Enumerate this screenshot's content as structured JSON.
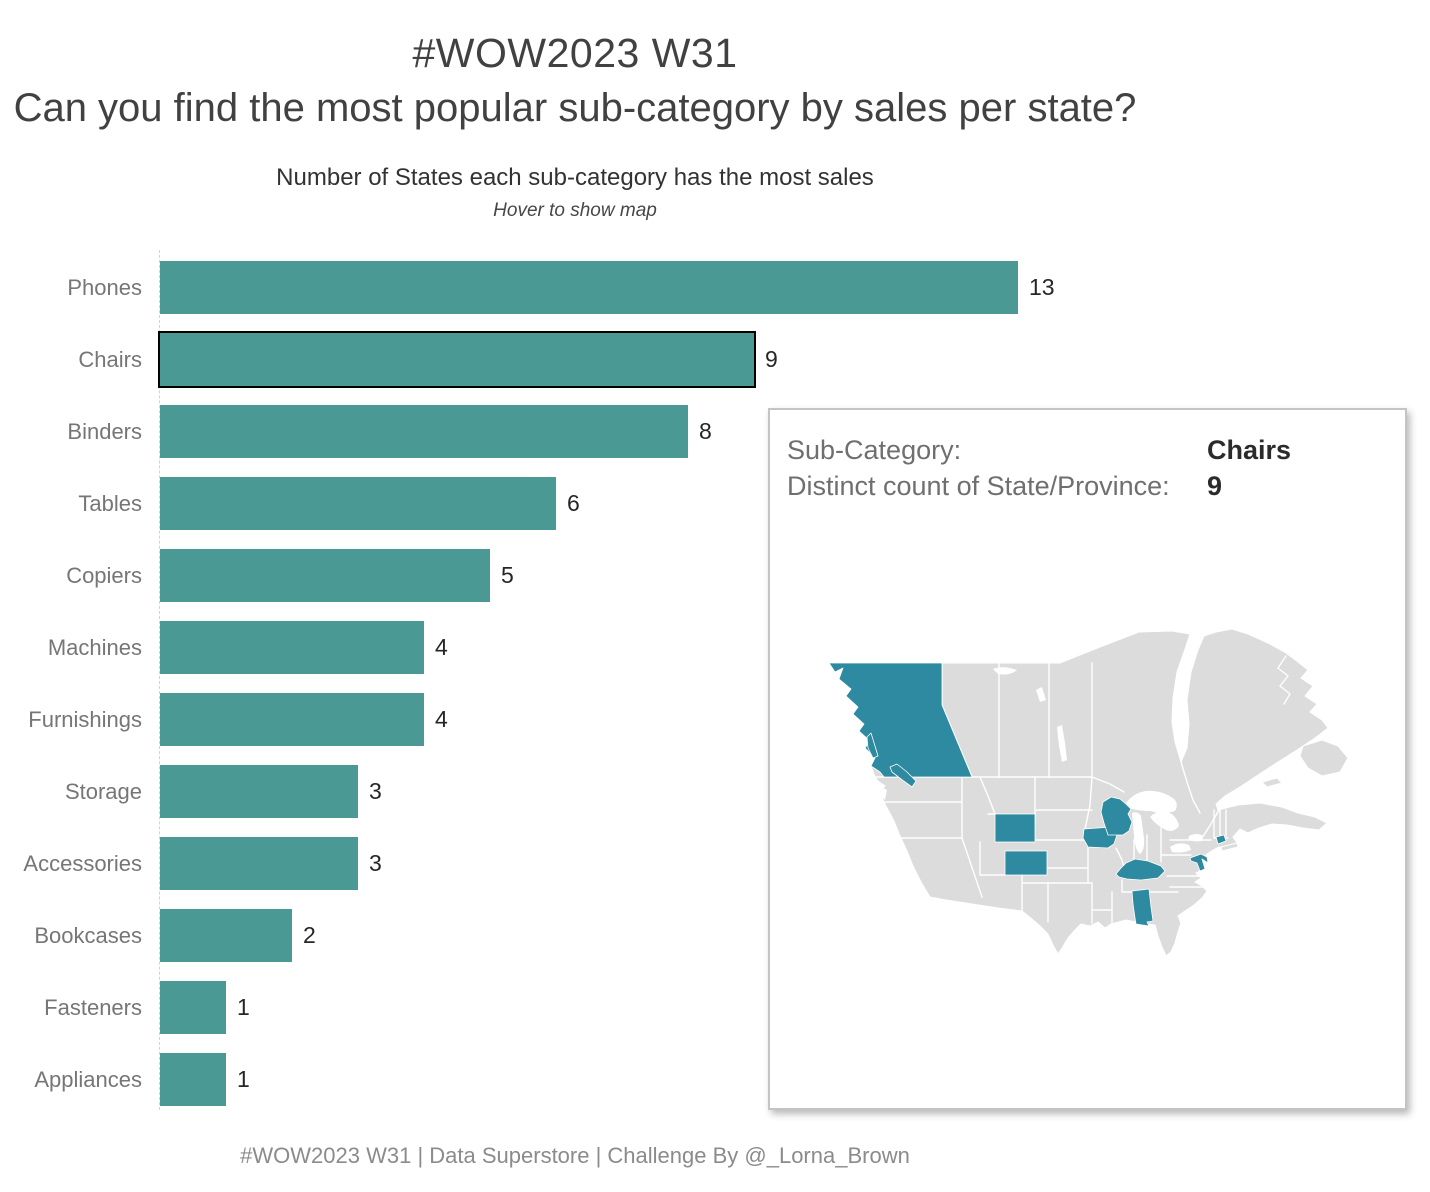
{
  "page": {
    "title": "#WOW2023 W31",
    "subtitle": "Can you find the most popular sub-category by sales per state?",
    "footer": "#WOW2023 W31 | Data Superstore | Challenge By @_Lorna_Brown"
  },
  "chart": {
    "title": "Number of States each sub-category has the most sales",
    "instruction": "Hover to show map"
  },
  "chart_data": {
    "type": "bar",
    "orientation": "horizontal",
    "title": "Number of States each sub-category has the most sales",
    "categories": [
      "Phones",
      "Chairs",
      "Binders",
      "Tables",
      "Copiers",
      "Machines",
      "Furnishings",
      "Storage",
      "Accessories",
      "Bookcases",
      "Fasteners",
      "Appliances"
    ],
    "values": [
      13,
      9,
      8,
      6,
      5,
      4,
      4,
      3,
      3,
      2,
      1,
      1
    ],
    "xlim": [
      0,
      13
    ],
    "value_labels_shown": true,
    "highlighted_category": "Chairs",
    "legend": "none",
    "grid": "off"
  },
  "tooltip": {
    "rows": [
      {
        "label": "Sub-Category:",
        "value": "Chairs"
      },
      {
        "label": "Distinct count of State/Province:",
        "value": "9"
      }
    ],
    "map_highlighted_regions": [
      "British Columbia",
      "Wyoming",
      "Colorado",
      "Iowa",
      "Wisconsin",
      "Kentucky",
      "Alabama",
      "Maryland",
      "Connecticut"
    ]
  },
  "colors": {
    "bar": "#4a9994",
    "bar_highlight_border": "#000000",
    "map_land": "#dcdcdc",
    "map_highlight": "#2d8aa0",
    "map_border": "#ffffff",
    "category_label": "#767676",
    "value_label": "#262626",
    "title_text": "#414141",
    "footer_text": "#8b8b8b",
    "tooltip_label": "#6f6f6f",
    "tooltip_value": "#2b2b2b",
    "tooltip_border": "#c4c4c4",
    "axis_line": "#d2d2d2"
  }
}
